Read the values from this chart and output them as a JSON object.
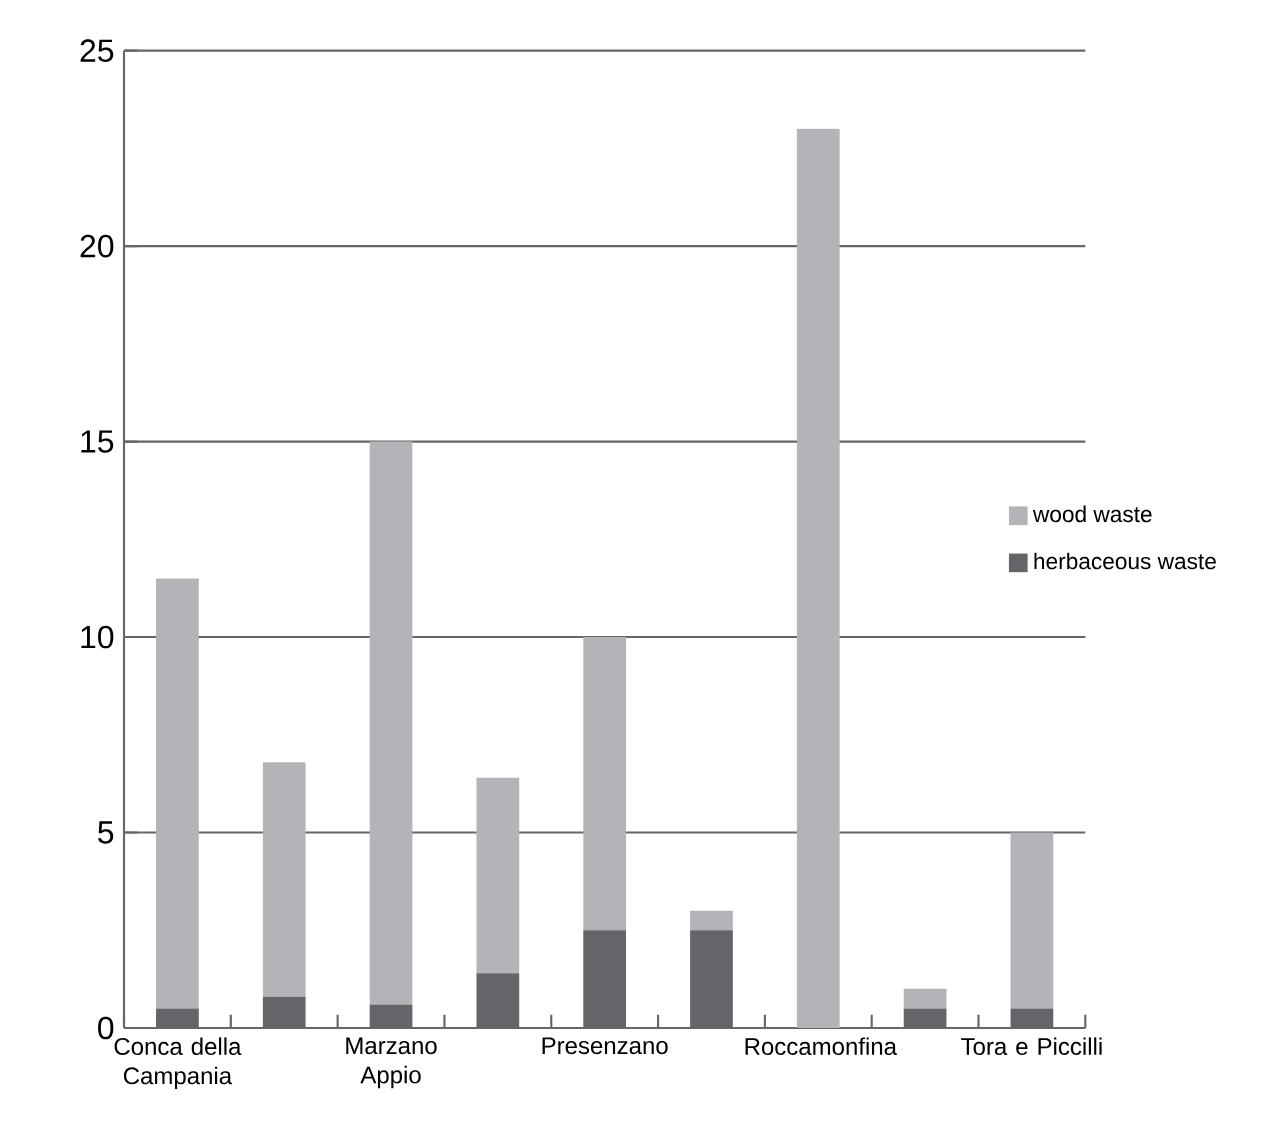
{
  "chart_data": {
    "type": "bar",
    "stacked": true,
    "categories": [
      "Conca della Campania",
      null,
      "Marzano Appio",
      null,
      "Presenzano",
      null,
      "Roccamonfina",
      null,
      "Tora e Piccilli"
    ],
    "series": [
      {
        "name": "herbaceous waste",
        "color": "#646569",
        "values": [
          0.5,
          0.8,
          0.6,
          1.4,
          2.5,
          2.5,
          0,
          0.5,
          0.5
        ]
      },
      {
        "name": "wood waste",
        "color": "#b3b4b7",
        "values": [
          11.0,
          6.0,
          14.4,
          5.0,
          7.5,
          0.5,
          23,
          0.5,
          4.5
        ]
      }
    ],
    "ylim": [
      0,
      25
    ],
    "yticks": [
      0,
      5,
      10,
      15,
      20,
      25
    ],
    "grid": "y",
    "legend": "right"
  }
}
